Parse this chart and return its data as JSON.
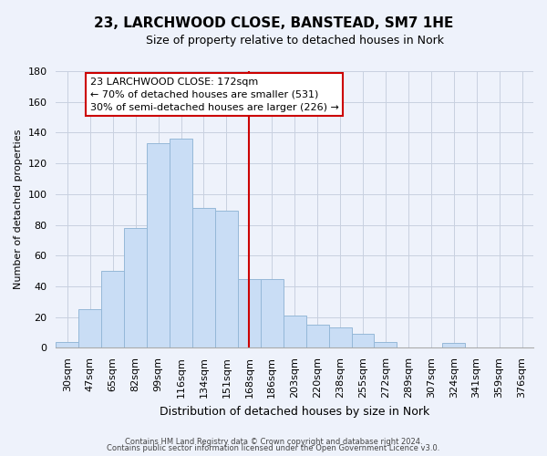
{
  "title": "23, LARCHWOOD CLOSE, BANSTEAD, SM7 1HE",
  "subtitle": "Size of property relative to detached houses in Nork",
  "xlabel": "Distribution of detached houses by size in Nork",
  "ylabel": "Number of detached properties",
  "bar_labels": [
    "30sqm",
    "47sqm",
    "65sqm",
    "82sqm",
    "99sqm",
    "116sqm",
    "134sqm",
    "151sqm",
    "168sqm",
    "186sqm",
    "203sqm",
    "220sqm",
    "238sqm",
    "255sqm",
    "272sqm",
    "289sqm",
    "307sqm",
    "324sqm",
    "341sqm",
    "359sqm",
    "376sqm"
  ],
  "bar_values": [
    4,
    25,
    50,
    78,
    133,
    136,
    91,
    89,
    45,
    45,
    21,
    15,
    13,
    9,
    4,
    0,
    0,
    3,
    0,
    0,
    0
  ],
  "bar_color": "#c9ddf5",
  "bar_edge_color": "#95b8d8",
  "vline_x": 8,
  "vline_color": "#cc0000",
  "annotation_text": "23 LARCHWOOD CLOSE: 172sqm\n← 70% of detached houses are smaller (531)\n30% of semi-detached houses are larger (226) →",
  "annotation_box_facecolor": "#ffffff",
  "annotation_box_edgecolor": "#cc0000",
  "ylim": [
    0,
    180
  ],
  "yticks": [
    0,
    20,
    40,
    60,
    80,
    100,
    120,
    140,
    160,
    180
  ],
  "footer_line1": "Contains HM Land Registry data © Crown copyright and database right 2024.",
  "footer_line2": "Contains public sector information licensed under the Open Government Licence v3.0.",
  "background_color": "#eef2fb",
  "grid_color": "#c8d0e0",
  "title_fontsize": 11,
  "subtitle_fontsize": 9,
  "xlabel_fontsize": 9,
  "ylabel_fontsize": 8,
  "tick_fontsize": 8,
  "annotation_fontsize": 8,
  "footer_fontsize": 6
}
